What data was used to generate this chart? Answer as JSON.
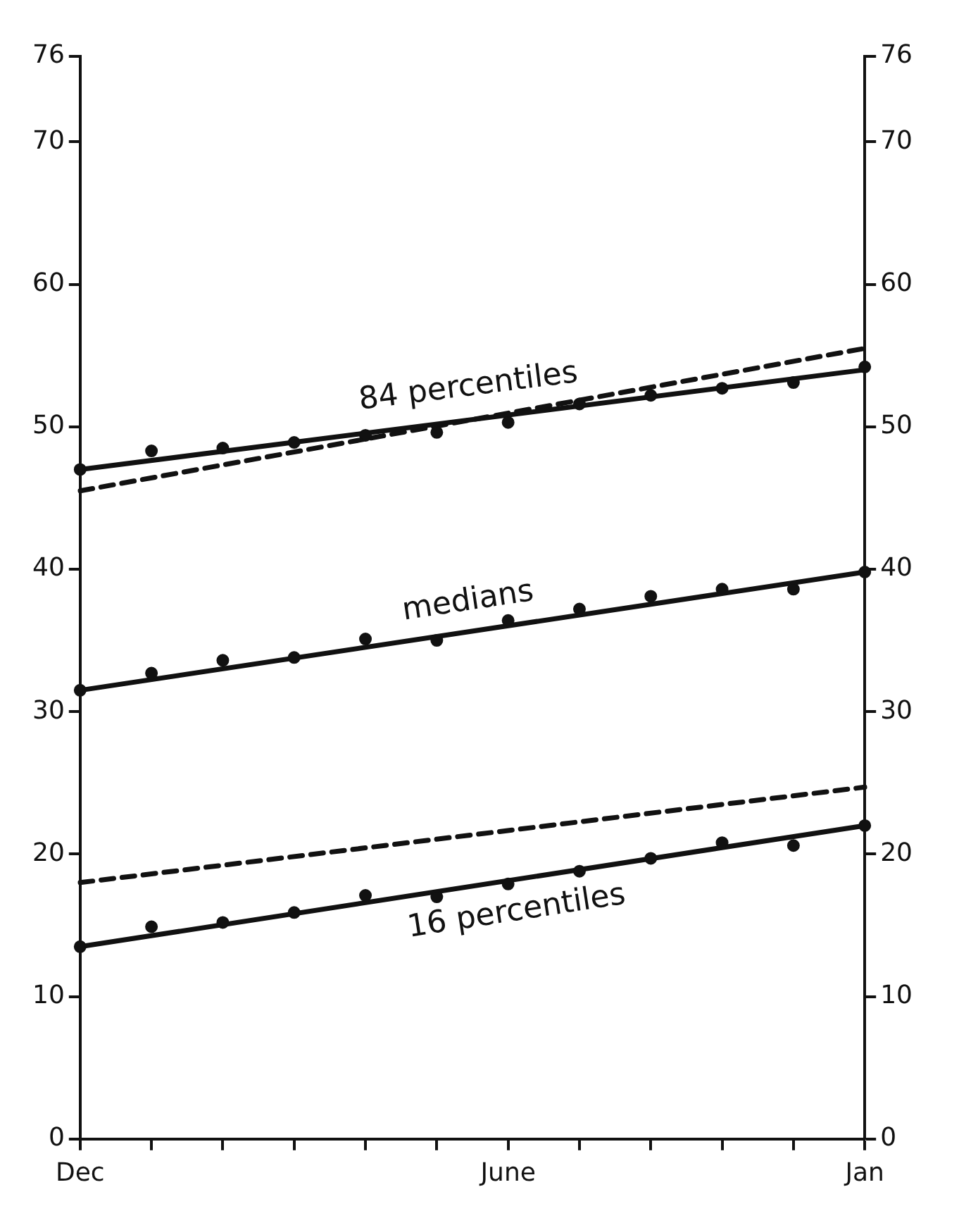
{
  "chart_data": {
    "type": "line",
    "categories": [
      "Dec",
      null,
      null,
      null,
      null,
      null,
      "June",
      null,
      null,
      null,
      null,
      "Jan"
    ],
    "ylim": [
      0,
      76
    ],
    "yticks": [
      0,
      10,
      20,
      30,
      40,
      50,
      60,
      70,
      76
    ],
    "y2lim": [
      0,
      76
    ],
    "y2ticks": [
      0,
      10,
      20,
      30,
      40,
      50,
      60,
      70,
      76
    ],
    "grid": false,
    "legend": false,
    "marker": "circle",
    "series": [
      {
        "type": "scatter",
        "color": "#111111",
        "values": [
          47.0,
          48.3,
          48.5,
          48.9,
          49.4,
          49.6,
          50.3,
          51.6,
          52.2,
          52.7,
          53.1,
          54.2
        ]
      },
      {
        "type": "line",
        "name": "84 percentiles",
        "color": "#111111",
        "marker": "none",
        "line_style": "solid",
        "values": [
          47.0,
          null,
          null,
          null,
          null,
          null,
          null,
          null,
          null,
          null,
          null,
          54.0
        ]
      },
      {
        "type": "line",
        "color": "#111111",
        "marker": "none",
        "line_style": "dashed",
        "values": [
          45.5,
          null,
          null,
          null,
          null,
          null,
          null,
          null,
          null,
          null,
          null,
          55.5
        ]
      },
      {
        "type": "scatter",
        "color": "#111111",
        "values": [
          31.5,
          32.7,
          33.6,
          33.8,
          35.1,
          35.0,
          36.4,
          37.2,
          38.1,
          38.6,
          38.6,
          39.8
        ]
      },
      {
        "type": "line",
        "name": "medians",
        "color": "#111111",
        "marker": "none",
        "line_style": "solid",
        "values": [
          31.5,
          null,
          null,
          null,
          null,
          null,
          null,
          null,
          null,
          null,
          null,
          39.8
        ]
      },
      {
        "type": "scatter",
        "color": "#111111",
        "values": [
          13.5,
          14.9,
          15.2,
          15.9,
          17.1,
          17.0,
          17.9,
          18.8,
          19.7,
          20.8,
          20.6,
          22.0
        ]
      },
      {
        "type": "line",
        "name": "16 percentiles",
        "color": "#111111",
        "marker": "none",
        "line_style": "solid",
        "values": [
          13.5,
          null,
          null,
          null,
          null,
          null,
          null,
          null,
          null,
          null,
          null,
          22.0
        ]
      },
      {
        "type": "line",
        "color": "#111111",
        "marker": "none",
        "line_style": "dashed",
        "values": [
          18.0,
          null,
          null,
          null,
          null,
          null,
          null,
          null,
          null,
          null,
          null,
          24.7
        ]
      }
    ]
  }
}
